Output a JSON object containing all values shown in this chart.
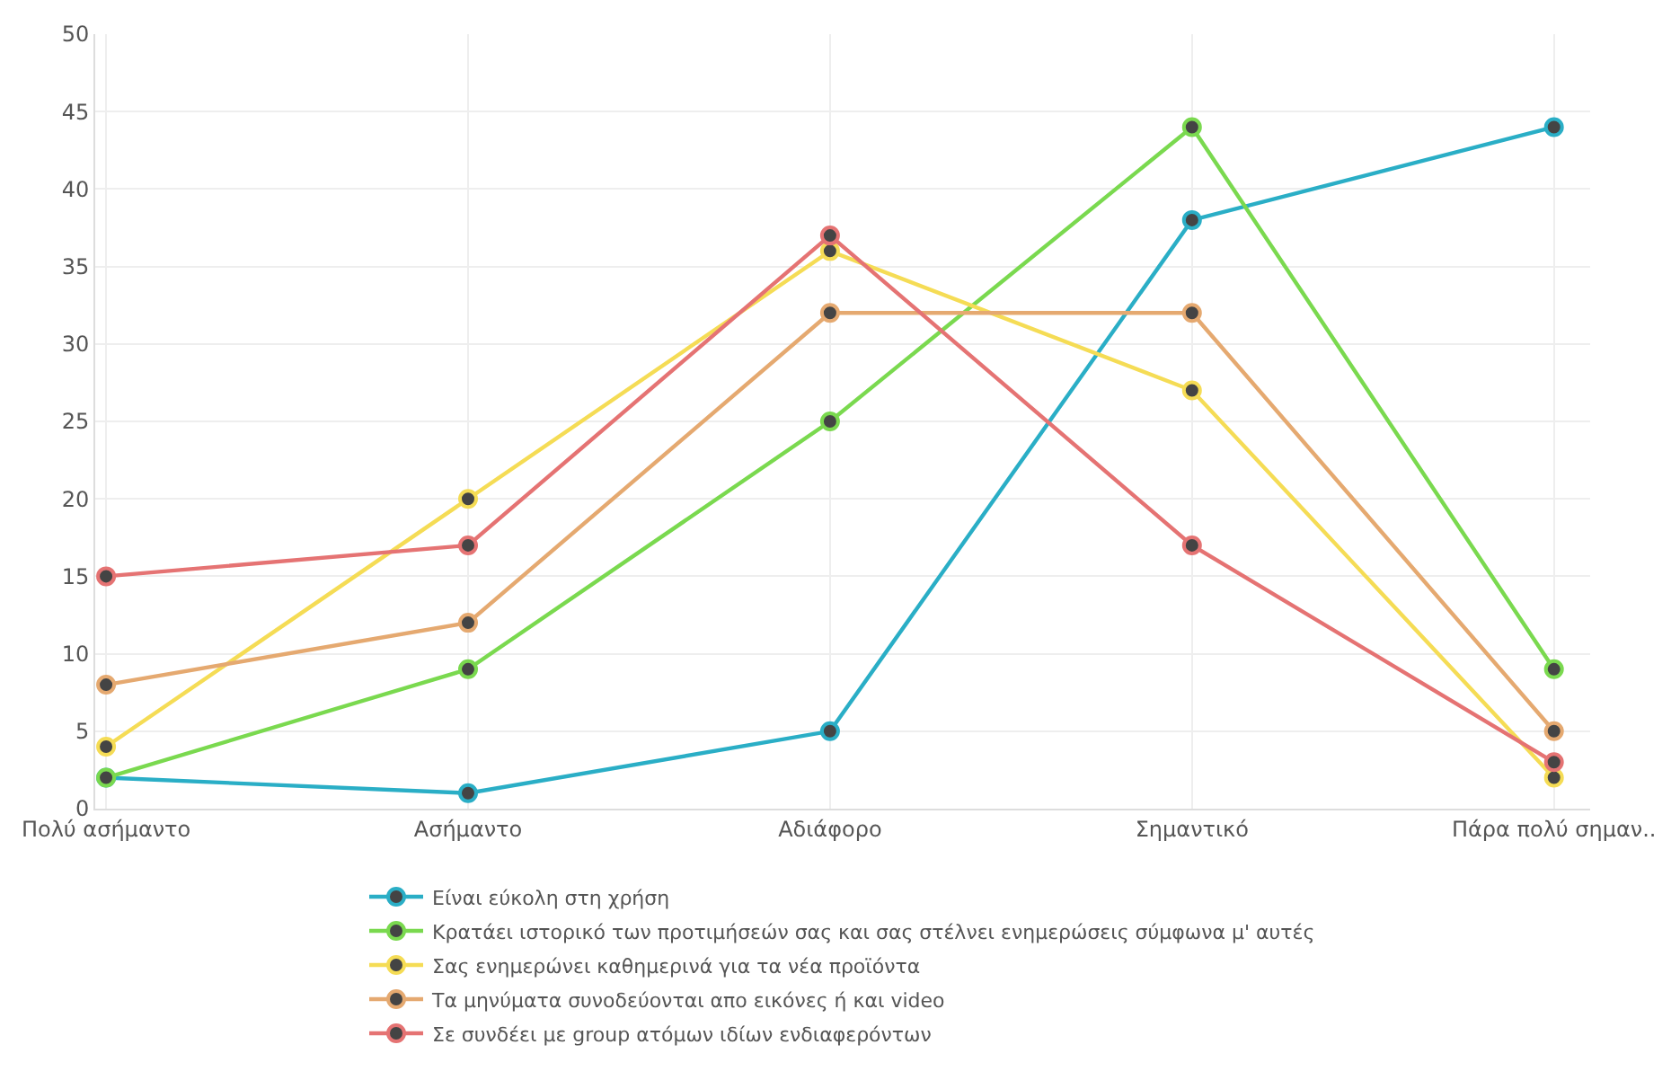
{
  "chart_data": {
    "type": "line",
    "categories": [
      "Πολύ ασήμαντο",
      "Ασήμαντο",
      "Αδιάφορο",
      "Σημαντικό",
      "Πάρα πολύ σημαν.."
    ],
    "series": [
      {
        "name": "Είναι εύκολη στη χρήση",
        "color": "#2aaec6",
        "values": [
          2,
          1,
          5,
          38,
          44
        ]
      },
      {
        "name": "Κρατάει ιστορικό των προτιμήσεών σας και σας στέλνει ενημερώσεις σύμφωνα μ' αυτές",
        "color": "#7ad94f",
        "values": [
          2,
          9,
          25,
          44,
          9
        ]
      },
      {
        "name": "Σας ενημερώνει καθημερινά για τα νέα προϊόντα",
        "color": "#f5dc55",
        "values": [
          4,
          20,
          36,
          27,
          2
        ]
      },
      {
        "name": "Τα μηνύματα συνοδεύονται απο εικόνες ή και video",
        "color": "#e5a970",
        "values": [
          8,
          12,
          32,
          32,
          5
        ]
      },
      {
        "name": "Σε συνδέει με group ατόμων ιδίων ενδιαφερόντων",
        "color": "#e57373",
        "values": [
          15,
          17,
          37,
          17,
          3
        ]
      }
    ],
    "ylim": [
      0,
      50
    ],
    "yticks": [
      0,
      5,
      10,
      15,
      20,
      25,
      30,
      35,
      40,
      45,
      50
    ],
    "grid": true,
    "legend": "bottom",
    "marker": "circle",
    "line_style": "solid"
  }
}
